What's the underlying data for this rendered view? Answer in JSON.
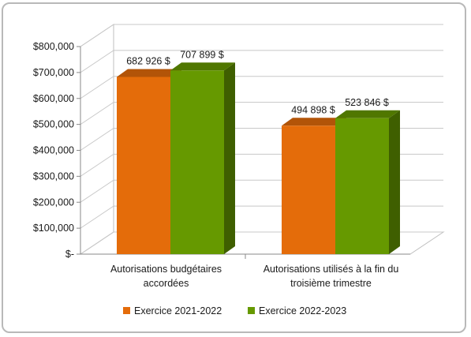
{
  "chart_data": {
    "type": "bar",
    "categories": [
      [
        "Autorisations budgétaires",
        "accordées"
      ],
      [
        "Autorisations utilisés à la fin du",
        "troisième trimestre"
      ]
    ],
    "series": [
      {
        "name": "Exercice 2021-2022",
        "values": [
          682926,
          494898
        ],
        "labels": [
          "682 926 $",
          "494 898 $"
        ],
        "color": "#e46c0a"
      },
      {
        "name": "Exercice 2022-2023",
        "values": [
          707899,
          523846
        ],
        "labels": [
          "707 899 $",
          "523 846 $"
        ],
        "color": "#669900"
      }
    ],
    "y_ticks": [
      {
        "value": 0,
        "label": "$-"
      },
      {
        "value": 100000,
        "label": "$100,000"
      },
      {
        "value": 200000,
        "label": "$200,000"
      },
      {
        "value": 300000,
        "label": "$300,000"
      },
      {
        "value": 400000,
        "label": "$400,000"
      },
      {
        "value": 500000,
        "label": "$500,000"
      },
      {
        "value": 600000,
        "label": "$600,000"
      },
      {
        "value": 700000,
        "label": "$700,000"
      },
      {
        "value": 800000,
        "label": "$800,000"
      }
    ],
    "ylim": [
      0,
      800000
    ],
    "grid": true,
    "three_d": true,
    "legend_position": "bottom"
  }
}
